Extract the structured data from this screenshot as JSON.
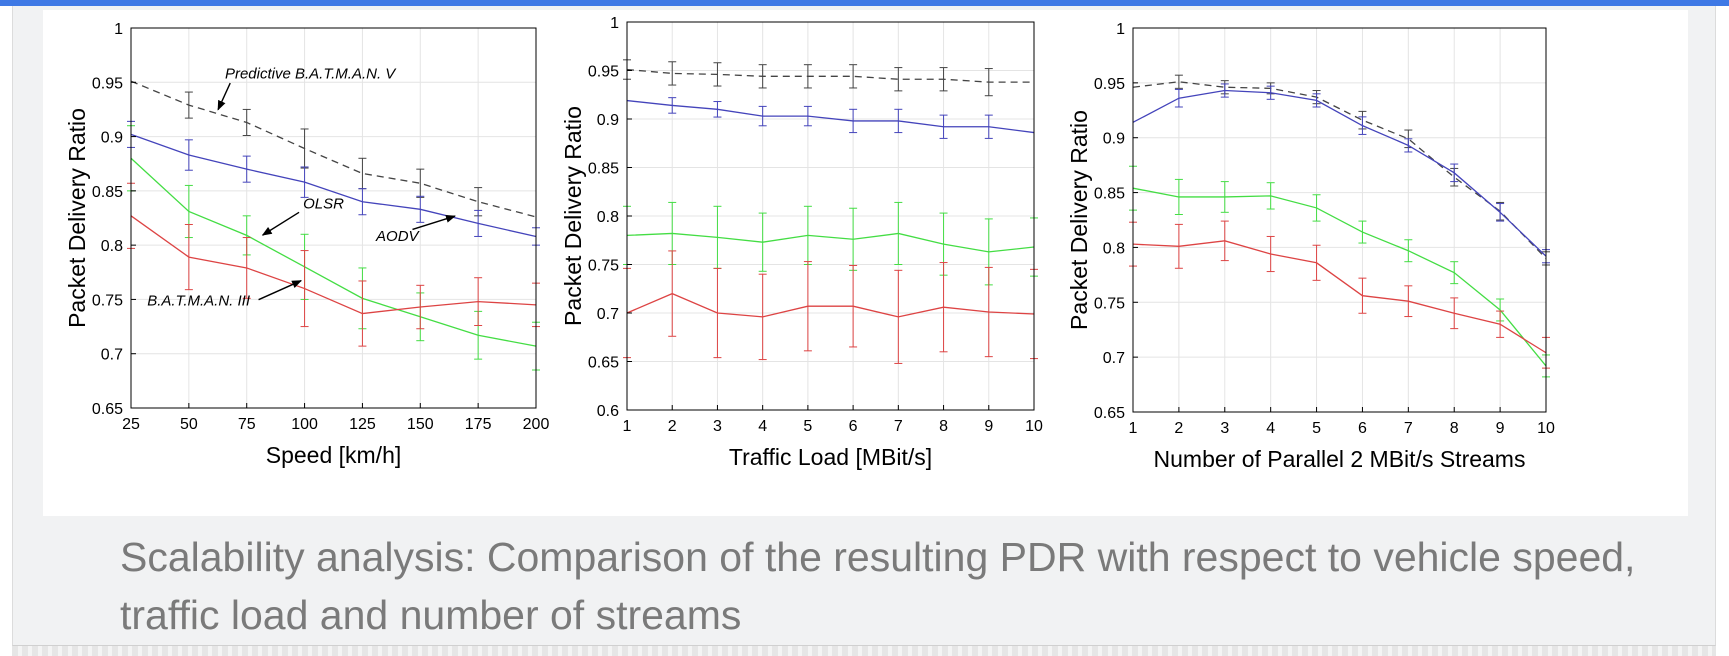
{
  "caption": "Scalability analysis: Comparison of the resulting PDR with respect to vehicle speed, traffic load and number of streams",
  "colors": {
    "predictive": "#444444",
    "aodv": "#4444bb",
    "olsr": "#44dd44",
    "batman3": "#dd4444"
  },
  "chart_data": [
    {
      "type": "line",
      "xlabel": "Speed [km/h]",
      "ylabel": "Packet Delivery Ratio",
      "x": [
        25,
        50,
        75,
        100,
        125,
        150,
        175,
        200
      ],
      "xlim": [
        25,
        200
      ],
      "ylim": [
        0.65,
        1
      ],
      "xticks": [
        "25",
        "50",
        "75",
        "100",
        "125",
        "150",
        "175",
        "200"
      ],
      "yticks": [
        "0.65",
        "0.7",
        "0.75",
        "0.8",
        "0.85",
        "0.9",
        "0.95",
        "1"
      ],
      "grid": true,
      "series": [
        {
          "key": "predictive",
          "dashed": true,
          "values": [
            0.951,
            0.929,
            0.913,
            0.889,
            0.866,
            0.857,
            0.84,
            0.826
          ],
          "err": [
            0.0,
            0.012,
            0.012,
            0.018,
            0.014,
            0.013,
            0.013,
            0.0
          ]
        },
        {
          "key": "aodv",
          "dashed": false,
          "values": [
            0.902,
            0.883,
            0.87,
            0.858,
            0.84,
            0.833,
            0.82,
            0.808
          ],
          "err": [
            0.012,
            0.014,
            0.012,
            0.014,
            0.012,
            0.012,
            0.012,
            0.008
          ]
        },
        {
          "key": "olsr",
          "dashed": false,
          "values": [
            0.88,
            0.831,
            0.809,
            0.78,
            0.751,
            0.734,
            0.717,
            0.707
          ],
          "err": [
            0.03,
            0.024,
            0.018,
            0.03,
            0.028,
            0.022,
            0.022,
            0.022
          ]
        },
        {
          "key": "batman3",
          "dashed": false,
          "values": [
            0.827,
            0.789,
            0.779,
            0.76,
            0.737,
            0.743,
            0.748,
            0.745
          ],
          "err": [
            0.03,
            0.03,
            0.028,
            0.035,
            0.03,
            0.02,
            0.022,
            0.02
          ]
        }
      ],
      "annotations": [
        {
          "text": "Predictive B.A.T.M.A.N. V",
          "at": [
            0.232,
            0.133
          ],
          "arrow_from": [
            0.245,
            0.145
          ],
          "arrow_to": [
            0.215,
            0.215
          ]
        },
        {
          "text": "OLSR",
          "at": [
            0.425,
            0.475
          ],
          "arrow_from": [
            0.415,
            0.485
          ],
          "arrow_to": [
            0.325,
            0.545
          ]
        },
        {
          "text": "AODV",
          "at": [
            0.605,
            0.56
          ],
          "arrow_from": [
            0.695,
            0.53
          ],
          "arrow_to": [
            0.8,
            0.495
          ]
        },
        {
          "text": "B.A.T.M.A.N. III",
          "at": [
            0.04,
            0.73
          ],
          "arrow_from": [
            0.315,
            0.715
          ],
          "arrow_to": [
            0.42,
            0.665
          ]
        }
      ]
    },
    {
      "type": "line",
      "xlabel": "Traffic Load [MBit/s]",
      "ylabel": "Packet Delivery Ratio",
      "x": [
        1,
        2,
        3,
        4,
        5,
        6,
        7,
        8,
        9,
        10
      ],
      "xlim": [
        1,
        10
      ],
      "ylim": [
        0.6,
        1
      ],
      "xticks": [
        "1",
        "2",
        "3",
        "4",
        "5",
        "6",
        "7",
        "8",
        "9",
        "10"
      ],
      "yticks": [
        "0.6",
        "0.65",
        "0.7",
        "0.75",
        "0.8",
        "0.85",
        "0.9",
        "0.95",
        "1"
      ],
      "grid": true,
      "series": [
        {
          "key": "predictive",
          "dashed": true,
          "values": [
            0.951,
            0.947,
            0.946,
            0.944,
            0.944,
            0.944,
            0.941,
            0.941,
            0.938,
            0.938
          ],
          "err": [
            0.01,
            0.012,
            0.012,
            0.012,
            0.012,
            0.012,
            0.012,
            0.012,
            0.014,
            0.0
          ]
        },
        {
          "key": "aodv",
          "dashed": false,
          "values": [
            0.919,
            0.914,
            0.91,
            0.903,
            0.903,
            0.898,
            0.898,
            0.892,
            0.892,
            0.886
          ],
          "err": [
            0.0,
            0.008,
            0.008,
            0.01,
            0.01,
            0.012,
            0.012,
            0.012,
            0.012,
            0.0
          ]
        },
        {
          "key": "olsr",
          "dashed": false,
          "values": [
            0.78,
            0.782,
            0.778,
            0.773,
            0.78,
            0.776,
            0.782,
            0.771,
            0.763,
            0.768
          ],
          "err": [
            0.03,
            0.032,
            0.032,
            0.03,
            0.03,
            0.032,
            0.032,
            0.032,
            0.034,
            0.03
          ]
        },
        {
          "key": "batman3",
          "dashed": false,
          "values": [
            0.7,
            0.72,
            0.7,
            0.696,
            0.707,
            0.707,
            0.696,
            0.706,
            0.701,
            0.699
          ],
          "err": [
            0.046,
            0.044,
            0.046,
            0.044,
            0.046,
            0.042,
            0.048,
            0.046,
            0.046,
            0.046
          ]
        }
      ],
      "annotations": []
    },
    {
      "type": "line",
      "xlabel": "Number of Parallel 2 MBit/s Streams",
      "ylabel": "Packet Delivery Ratio",
      "x": [
        1,
        2,
        3,
        4,
        5,
        6,
        7,
        8,
        9,
        10
      ],
      "xlim": [
        1,
        10
      ],
      "ylim": [
        0.65,
        1
      ],
      "xticks": [
        "1",
        "2",
        "3",
        "4",
        "5",
        "6",
        "7",
        "8",
        "9",
        "10"
      ],
      "yticks": [
        "0.65",
        "0.7",
        "0.75",
        "0.8",
        "0.85",
        "0.9",
        "0.95",
        "1"
      ],
      "grid": true,
      "series": [
        {
          "key": "predictive",
          "dashed": true,
          "values": [
            0.946,
            0.951,
            0.946,
            0.945,
            0.937,
            0.916,
            0.899,
            0.864,
            0.833,
            0.79
          ],
          "err": [
            0.0,
            0.006,
            0.006,
            0.005,
            0.006,
            0.008,
            0.008,
            0.008,
            0.008,
            0.006
          ]
        },
        {
          "key": "aodv",
          "dashed": false,
          "values": [
            0.914,
            0.936,
            0.943,
            0.941,
            0.934,
            0.911,
            0.893,
            0.868,
            0.832,
            0.792
          ],
          "err": [
            0.0,
            0.008,
            0.006,
            0.006,
            0.006,
            0.008,
            0.006,
            0.008,
            0.008,
            0.006
          ]
        },
        {
          "key": "olsr",
          "dashed": false,
          "values": [
            0.854,
            0.846,
            0.846,
            0.847,
            0.836,
            0.814,
            0.797,
            0.777,
            0.743,
            0.692
          ],
          "err": [
            0.02,
            0.016,
            0.014,
            0.012,
            0.012,
            0.01,
            0.01,
            0.01,
            0.01,
            0.01
          ]
        },
        {
          "key": "batman3",
          "dashed": false,
          "values": [
            0.803,
            0.801,
            0.806,
            0.794,
            0.786,
            0.756,
            0.751,
            0.74,
            0.73,
            0.704
          ],
          "err": [
            0.02,
            0.02,
            0.018,
            0.016,
            0.016,
            0.016,
            0.014,
            0.014,
            0.012,
            0.014
          ]
        }
      ],
      "annotations": []
    }
  ]
}
